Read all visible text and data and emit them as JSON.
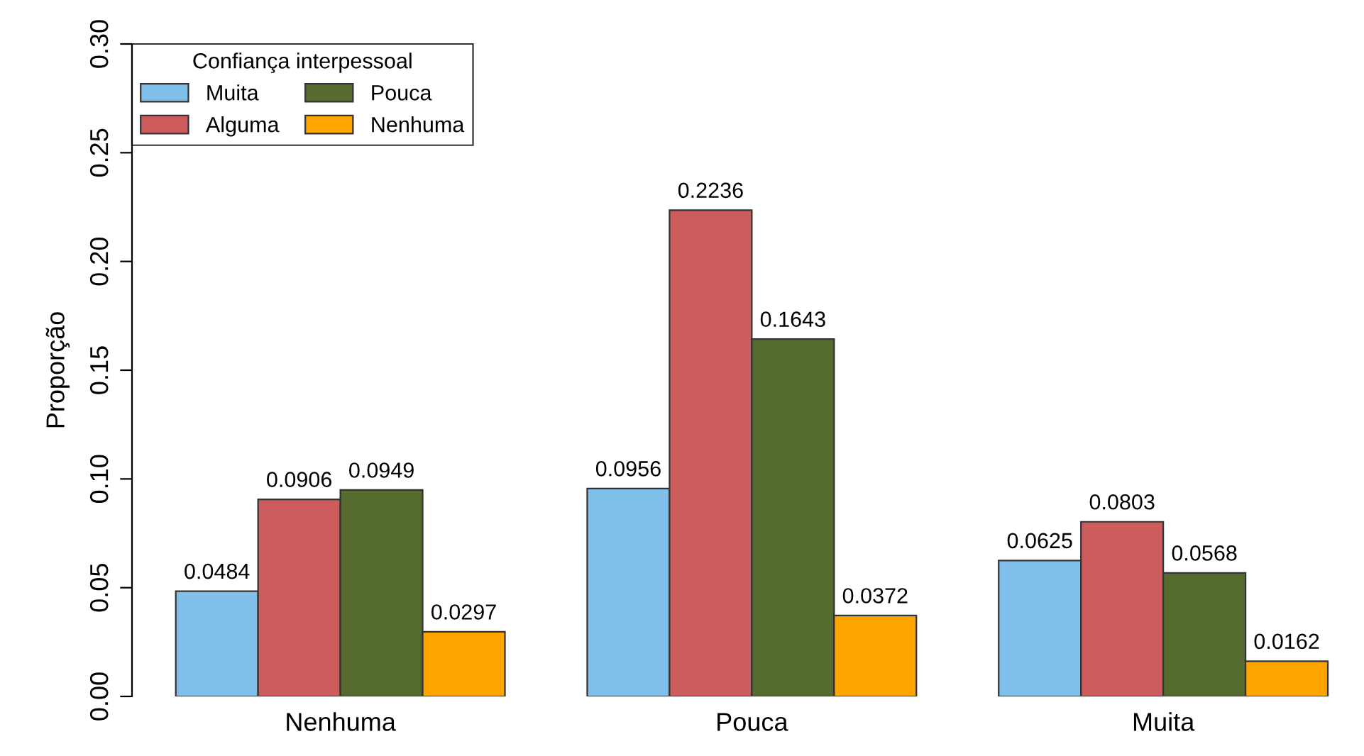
{
  "chart_data": {
    "type": "bar",
    "ylabel": "Proporção",
    "legend_title": "Confiança interpessoal",
    "categories": [
      "Nenhuma",
      "Pouca",
      "Muita"
    ],
    "series": [
      {
        "name": "Muita",
        "color": "#7fbfea",
        "values": [
          0.0484,
          0.0956,
          0.0625
        ]
      },
      {
        "name": "Alguma",
        "color": "#cd5c5c",
        "values": [
          0.0906,
          0.2236,
          0.0803
        ]
      },
      {
        "name": "Pouca",
        "color": "#556b2f",
        "values": [
          0.0949,
          0.1643,
          0.0568
        ]
      },
      {
        "name": "Nenhuma",
        "color": "#ffa500",
        "values": [
          0.0297,
          0.0372,
          0.0162
        ]
      }
    ],
    "ylim": [
      0,
      0.3
    ],
    "yticks": [
      {
        "value": 0,
        "label": "0.00"
      },
      {
        "value": 0.05,
        "label": "0.05"
      },
      {
        "value": 0.1,
        "label": "0.10"
      },
      {
        "value": 0.15,
        "label": "0.15"
      },
      {
        "value": 0.2,
        "label": "0.20"
      },
      {
        "value": 0.25,
        "label": "0.25"
      },
      {
        "value": 0.3,
        "label": "0.30"
      }
    ],
    "data_labels": true,
    "legend": "top left",
    "grid": false
  }
}
